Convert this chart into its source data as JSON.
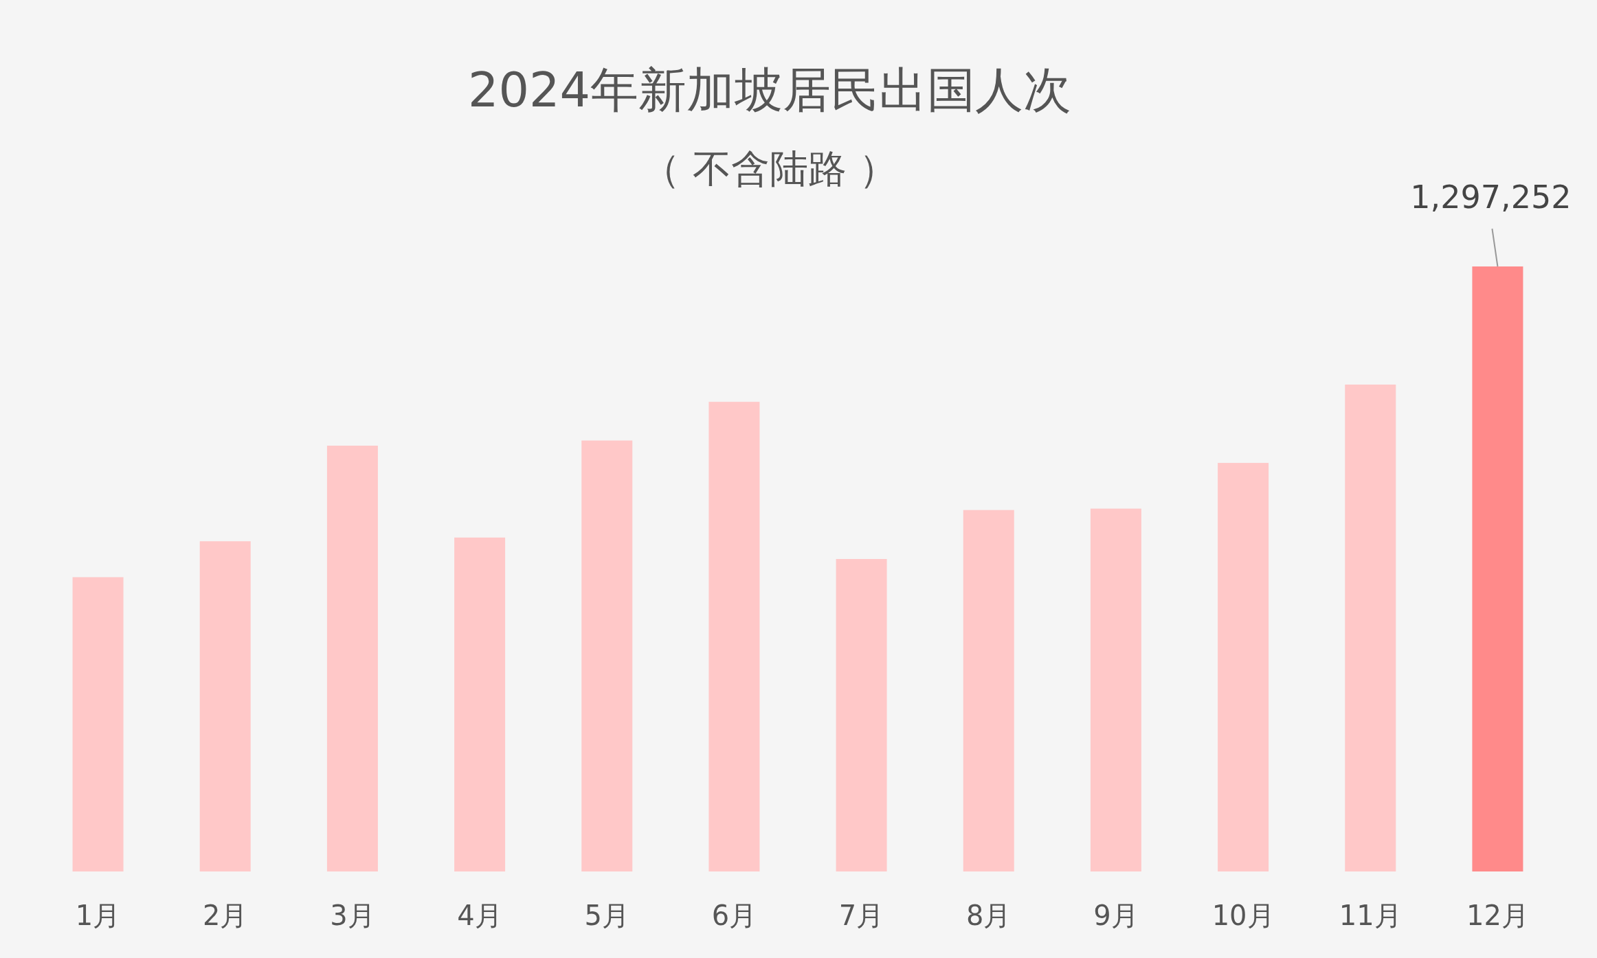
{
  "chart_data": {
    "type": "bar",
    "title": "2024年新加坡居民出国人次",
    "subtitle": "（ 不含陆路 ）",
    "categories": [
      "1月",
      "2月",
      "3月",
      "4月",
      "5月",
      "6月",
      "7月",
      "8月",
      "9月",
      "10月",
      "11月",
      "12月"
    ],
    "values": [
      631000,
      708000,
      913000,
      716000,
      924000,
      1007000,
      670000,
      775000,
      778000,
      876000,
      1044000,
      1297252
    ],
    "colors": [
      "#ffc8c8",
      "#ffc8c8",
      "#ffc8c8",
      "#ffc8c8",
      "#ffc8c8",
      "#ffc8c8",
      "#ffc8c8",
      "#ffc8c8",
      "#ffc8c8",
      "#ffc8c8",
      "#ffc8c8",
      "#ff8a8a"
    ],
    "value_labels": [
      null,
      null,
      null,
      null,
      null,
      null,
      null,
      null,
      null,
      null,
      null,
      "1,297,252"
    ]
  }
}
